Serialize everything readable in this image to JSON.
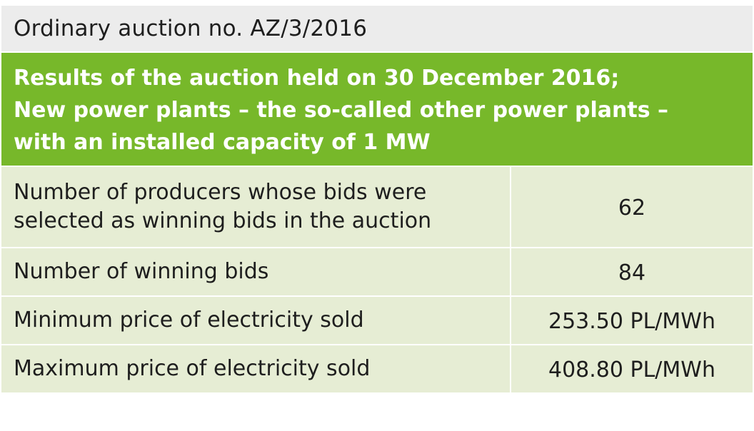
{
  "table": {
    "title": "Ordinary auction no. AZ/3/2016",
    "header_lines": [
      "Results of the auction held on 30 December 2016;",
      "New power plants – the so-called other power plants –",
      "with an installed capacity of 1 MW"
    ],
    "rows": [
      {
        "label_lines": [
          "Number of producers whose bids were",
          "selected as winning bids in the auction"
        ],
        "value": "62"
      },
      {
        "label_lines": [
          "Number of winning bids"
        ],
        "value": "84"
      },
      {
        "label_lines": [
          "Minimum price of electricity sold"
        ],
        "value": "253.50 PL/MWh"
      },
      {
        "label_lines": [
          "Maximum price of electricity sold"
        ],
        "value": "408.80 PL/MWh"
      }
    ]
  },
  "colors": {
    "header_green": "#77b82a",
    "row_background": "#e6edd4",
    "title_background": "#ececec"
  }
}
